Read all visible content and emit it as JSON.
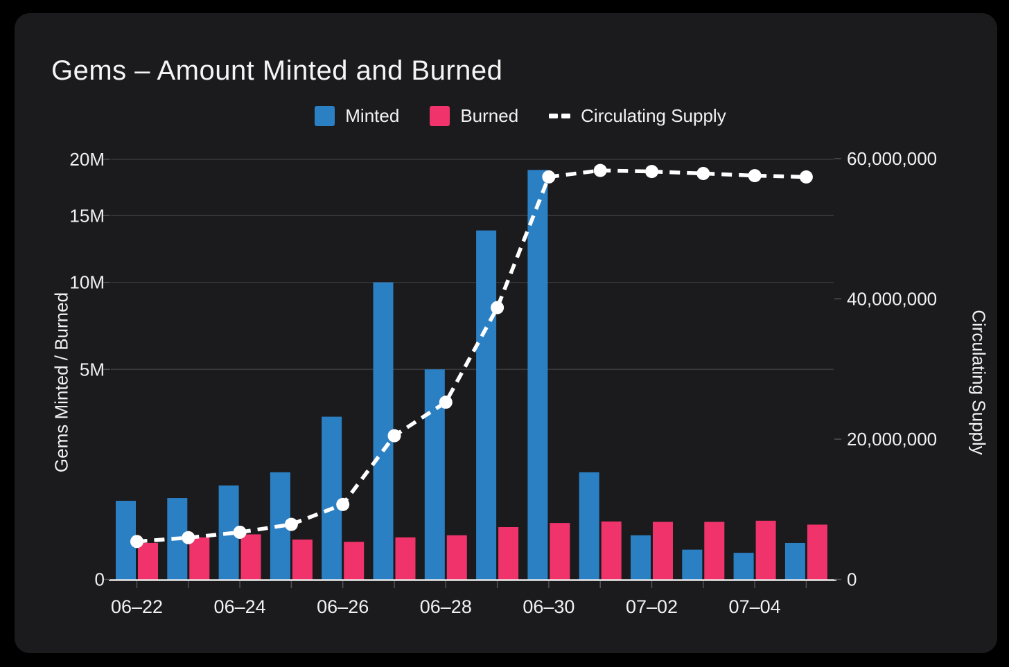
{
  "title": "Gems – Amount Minted and Burned",
  "legend": {
    "minted_label": "Minted",
    "burned_label": "Burned",
    "supply_label": "Circulating Supply"
  },
  "axes": {
    "left_title": "Gems Minted / Burned",
    "right_title": "Circulating Supply"
  },
  "colors": {
    "background": "#000000",
    "card": "#1b1b1d",
    "minted": "#2b80c4",
    "burned": "#f1336c",
    "supply_line": "#ffffff",
    "grid": "#39393d",
    "axis_line": "#ececec",
    "tick_stub": "#55555a",
    "tick_text": "#f2f2f2"
  },
  "chart_data": {
    "type": "bar",
    "subtype": "grouped-bars-with-dashed-line",
    "title": "Gems – Amount Minted and Burned",
    "categories": [
      "06-22",
      "06-23",
      "06-24",
      "06-25",
      "06-26",
      "06-27",
      "06-28",
      "06-29",
      "06-30",
      "07-01",
      "07-02",
      "07-03",
      "07-04",
      "07-05"
    ],
    "series": [
      {
        "name": "Minted",
        "type": "bar",
        "axis": "left",
        "values": [
          700000,
          750000,
          1000000,
          1300000,
          3000000,
          10000000,
          5000000,
          13800000,
          19000000,
          1300000,
          220000,
          100000,
          80000,
          150000
        ]
      },
      {
        "name": "Burned",
        "type": "bar",
        "axis": "left",
        "values": [
          150000,
          200000,
          230000,
          180000,
          160000,
          200000,
          220000,
          310000,
          360000,
          380000,
          375000,
          375000,
          390000,
          340000
        ]
      },
      {
        "name": "Circulating Supply",
        "type": "line",
        "style": "dashed",
        "marker": "circle",
        "axis": "right",
        "values": [
          5400000,
          5950000,
          6720000,
          7840000,
          10680000,
          20480000,
          25260000,
          38750000,
          57390000,
          58310000,
          58160000,
          57880000,
          57570000,
          57380000
        ]
      }
    ],
    "left_axis": {
      "title": "Gems Minted / Burned",
      "scale": "sqrt",
      "lim": [
        0,
        20000000
      ],
      "ticks": [
        {
          "v": 0,
          "label": "0"
        },
        {
          "v": 5000000,
          "label": "5M"
        },
        {
          "v": 10000000,
          "label": "10M"
        },
        {
          "v": 15000000,
          "label": "15M"
        },
        {
          "v": 20000000,
          "label": "20M"
        }
      ]
    },
    "right_axis": {
      "title": "Circulating Supply",
      "scale": "linear",
      "lim": [
        0,
        60000000
      ],
      "ticks": [
        {
          "v": 0,
          "label": "0"
        },
        {
          "v": 20000000,
          "label": "20,000,000"
        },
        {
          "v": 40000000,
          "label": "40,000,000"
        },
        {
          "v": 60000000,
          "label": "60,000,000"
        }
      ]
    },
    "x_axis": {
      "labeled_every": 2,
      "tick_labels": [
        "06–22",
        "06–24",
        "06–26",
        "06–28",
        "06–30",
        "07–02",
        "07–04"
      ]
    },
    "grid": "horizontal",
    "legend_position": "top-center"
  }
}
